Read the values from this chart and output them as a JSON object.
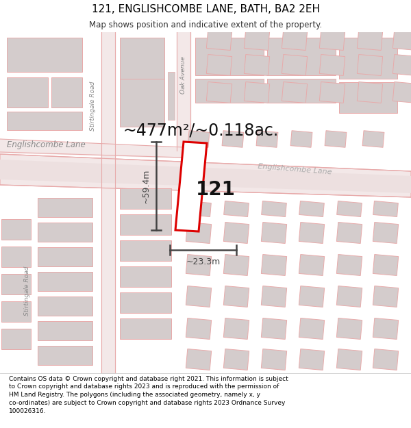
{
  "title": "121, ENGLISHCOMBE LANE, BATH, BA2 2EH",
  "subtitle": "Map shows position and indicative extent of the property.",
  "area_text": "~477m²/~0.118ac.",
  "dim_height": "~59.4m",
  "dim_width": "~23.3m",
  "label_121": "121",
  "footer": "Contains OS data © Crown copyright and database right 2021. This information is subject to Crown copyright and database rights 2023 and is reproduced with the permission of HM Land Registry. The polygons (including the associated geometry, namely x, y co-ordinates) are subject to Crown copyright and database rights 2023 Ordnance Survey 100026316.",
  "bg_color": "#ffffff",
  "map_bg": "#f9f2f2",
  "road_outline": "#e8aaaa",
  "road_fill": "#f9f2f2",
  "building_fill": "#d4cccc",
  "building_edge": "#e8aaaa",
  "highlight_fill": "#ffffff",
  "highlight_edge": "#dd0000",
  "dim_color": "#444444",
  "street_color": "#888888",
  "label_color": "#111111",
  "title_fontsize": 11,
  "subtitle_fontsize": 8.5,
  "footer_fontsize": 6.5,
  "area_fontsize": 17,
  "dim_fontsize": 9,
  "street_fontsize": 7,
  "plot_label_fontsize": 20
}
